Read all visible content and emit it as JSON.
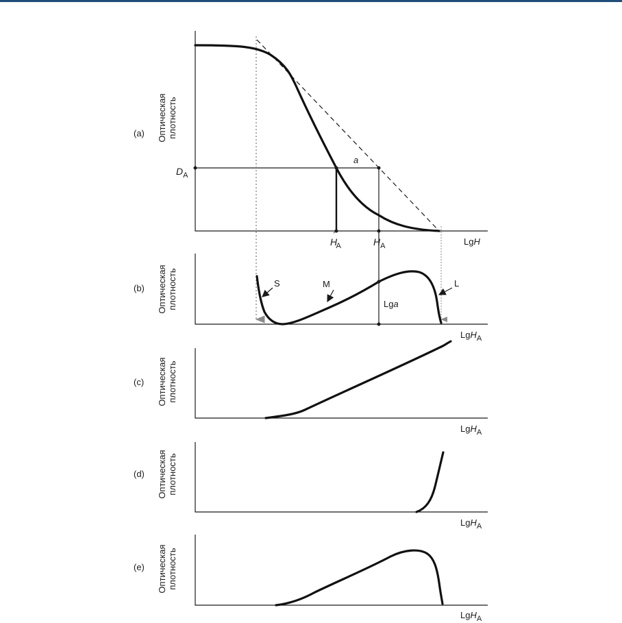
{
  "panels": [
    {
      "id": "a",
      "label": "(a)",
      "ylabel_line1": "Оптическая",
      "ylabel_line2": "плотность",
      "xlabel_prefix": "Lg",
      "xlabel_var": "H",
      "xlabel_sub": ""
    },
    {
      "id": "b",
      "label": "(b)",
      "ylabel_line1": "Оптическая",
      "ylabel_line2": "плотность",
      "xlabel_prefix": "Lg",
      "xlabel_var": "H",
      "xlabel_sub": "A"
    },
    {
      "id": "c",
      "label": "(c)",
      "ylabel_line1": "Оптическая",
      "ylabel_line2": "плотность",
      "xlabel_prefix": "Lg",
      "xlabel_var": "H",
      "xlabel_sub": "A"
    },
    {
      "id": "d",
      "label": "(d)",
      "ylabel_line1": "Оптическая",
      "ylabel_line2": "плотность",
      "xlabel_prefix": "Lg",
      "xlabel_var": "H",
      "xlabel_sub": "A"
    },
    {
      "id": "e",
      "label": "(e)",
      "ylabel_line1": "Оптическая",
      "ylabel_line2": "плотность",
      "xlabel_prefix": "Lg",
      "xlabel_var": "H",
      "xlabel_sub": "A"
    }
  ],
  "panel_a": {
    "d_label_var": "D",
    "d_label_sub": "A",
    "a_label": "a",
    "h_prime_var": "H",
    "h_prime_mark": "´",
    "h_prime_sub": "A",
    "h_var": "H",
    "h_sub": "A"
  },
  "panel_b": {
    "s_label": "S",
    "m_label": "M",
    "l_label": "L",
    "lga_prefix": "Lg",
    "lga_var": "a"
  },
  "colors": {
    "top_rule": "#1f4e79",
    "curve": "#111111",
    "guide": "#8a8a8a"
  }
}
